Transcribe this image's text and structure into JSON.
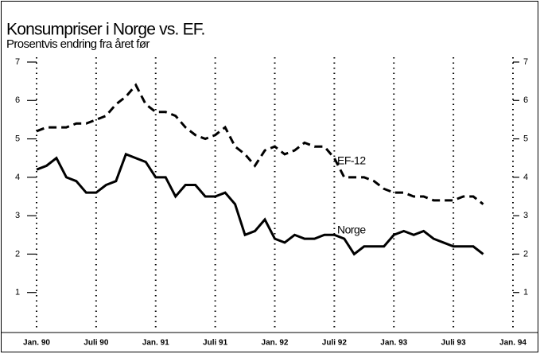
{
  "chart_data": {
    "type": "line",
    "title": "Konsumpriser i Norge vs. EF.",
    "subtitle": "Prosentvis endring fra året før",
    "categories": [
      "Jan. 90",
      null,
      null,
      null,
      null,
      null,
      "Juli 90",
      null,
      null,
      null,
      null,
      null,
      "Jan. 91",
      null,
      null,
      null,
      null,
      null,
      "Juli 91",
      null,
      null,
      null,
      null,
      null,
      "Jan. 92",
      null,
      null,
      null,
      null,
      null,
      "Juli 92",
      null,
      null,
      null,
      null,
      null,
      "Jan. 93",
      null,
      null,
      null,
      null,
      null,
      "Juli 93",
      null,
      null,
      null,
      null,
      null,
      "Jan. 94"
    ],
    "series": [
      {
        "name": "EF-12",
        "color": "#000000",
        "dash": true,
        "values": [
          5.2,
          5.3,
          5.3,
          5.3,
          5.4,
          5.4,
          5.5,
          5.6,
          5.9,
          6.1,
          6.4,
          5.9,
          5.7,
          5.7,
          5.6,
          5.3,
          5.1,
          5.0,
          5.1,
          5.3,
          4.8,
          4.6,
          4.3,
          4.7,
          4.8,
          4.6,
          4.7,
          4.9,
          4.8,
          4.8,
          4.5,
          4.0,
          4.0,
          4.0,
          3.9,
          3.7,
          3.6,
          3.6,
          3.5,
          3.5,
          3.4,
          3.4,
          3.4,
          3.5,
          3.5,
          3.3,
          null,
          null,
          null
        ]
      },
      {
        "name": "Norge",
        "color": "#000000",
        "dash": false,
        "values": [
          4.2,
          4.3,
          4.5,
          4.0,
          3.9,
          3.6,
          3.6,
          3.8,
          3.9,
          4.6,
          4.5,
          4.4,
          4.0,
          4.0,
          3.5,
          3.8,
          3.8,
          3.5,
          3.5,
          3.6,
          3.3,
          2.5,
          2.6,
          2.9,
          2.4,
          2.3,
          2.5,
          2.4,
          2.4,
          2.5,
          2.5,
          2.4,
          2.0,
          2.2,
          2.2,
          2.2,
          2.5,
          2.6,
          2.5,
          2.6,
          2.4,
          2.3,
          2.2,
          2.2,
          2.2,
          2.0,
          null,
          null,
          null
        ]
      }
    ],
    "ylim": [
      0,
      7
    ],
    "yticks": [
      1,
      2,
      3,
      4,
      5,
      6,
      7
    ],
    "grid": true
  }
}
